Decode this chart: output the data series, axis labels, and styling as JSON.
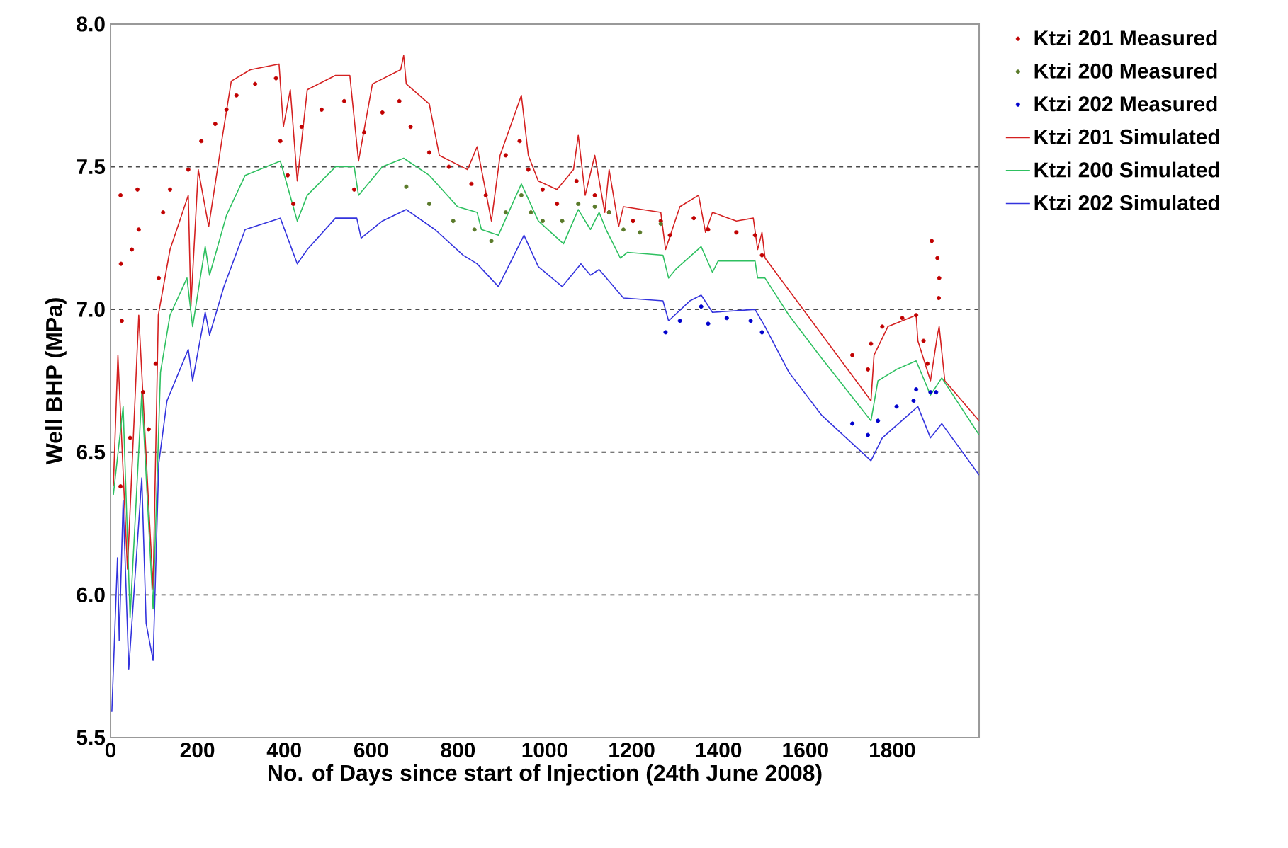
{
  "chart_data": {
    "type": "line",
    "xlabel": "No. of Days since start of Injection (24th June 2008)",
    "ylabel": "Well BHP (MPa)",
    "xlim": [
      0,
      2000
    ],
    "ylim": [
      5.5,
      8.0
    ],
    "xticks": [
      0,
      200,
      400,
      600,
      800,
      1000,
      1200,
      1400,
      1600,
      1800
    ],
    "yticks": [
      {
        "value": 5.5,
        "label": "5.5"
      },
      {
        "value": 6,
        "label": "6.0"
      },
      {
        "value": 6.5,
        "label": "6.5"
      },
      {
        "value": 7,
        "label": "7.0"
      },
      {
        "value": 7.5,
        "label": "7.5"
      },
      {
        "value": 8,
        "label": "8.0"
      }
    ],
    "grid": "y",
    "legend": "top right",
    "series": [
      {
        "name": "Ktzi 201 Measured",
        "type": "scatter",
        "marker": "circle",
        "color": "#c00000",
        "x": [
          23,
          24,
          26,
          23,
          45,
          49,
          62,
          65,
          75,
          88,
          104,
          111,
          121,
          137,
          179,
          209,
          241,
          267,
          290,
          333,
          381,
          391,
          408,
          421,
          440,
          486,
          538,
          561,
          584,
          626,
          665,
          691,
          734,
          779,
          831,
          864,
          910,
          942,
          962,
          995,
          1028,
          1073,
          1115,
          1148,
          1203,
          1267,
          1288,
          1343,
          1376,
          1441,
          1484,
          1500,
          1708,
          1744,
          1751,
          1777,
          1823,
          1855,
          1872,
          1881,
          1891,
          1904,
          1908,
          1907
        ],
        "values": [
          7.4,
          7.16,
          6.96,
          6.38,
          6.55,
          7.21,
          7.42,
          7.28,
          6.71,
          6.58,
          6.81,
          7.11,
          7.34,
          7.42,
          7.49,
          7.59,
          7.65,
          7.7,
          7.75,
          7.79,
          7.81,
          7.59,
          7.47,
          7.37,
          7.64,
          7.7,
          7.73,
          7.42,
          7.62,
          7.69,
          7.73,
          7.64,
          7.55,
          7.5,
          7.44,
          7.4,
          7.54,
          7.59,
          7.49,
          7.42,
          7.37,
          7.45,
          7.4,
          7.34,
          7.31,
          7.31,
          7.26,
          7.32,
          7.28,
          7.27,
          7.26,
          7.19,
          6.84,
          6.79,
          6.88,
          6.94,
          6.97,
          6.98,
          6.89,
          6.81,
          7.24,
          7.18,
          7.11,
          7.04
        ]
      },
      {
        "name": "Ktzi 200 Measured",
        "type": "scatter",
        "marker": "circle",
        "color": "#5a7a2a",
        "x": [
          681,
          734,
          789,
          838,
          877,
          910,
          946,
          968,
          995,
          1040,
          1077,
          1115,
          1148,
          1181,
          1219,
          1267
        ],
        "values": [
          7.43,
          7.37,
          7.31,
          7.28,
          7.24,
          7.34,
          7.4,
          7.34,
          7.31,
          7.31,
          7.37,
          7.36,
          7.34,
          7.28,
          7.27,
          7.3
        ]
      },
      {
        "name": "Ktzi 202 Measured",
        "type": "scatter",
        "marker": "circle",
        "color": "#0000cc",
        "x": [
          1278,
          1311,
          1360,
          1376,
          1419,
          1474,
          1500,
          1708,
          1744,
          1767,
          1810,
          1849,
          1855,
          1888,
          1901
        ],
        "values": [
          6.92,
          6.96,
          7.01,
          6.95,
          6.97,
          6.96,
          6.92,
          6.6,
          6.56,
          6.61,
          6.66,
          6.68,
          6.72,
          6.71,
          6.71
        ]
      },
      {
        "name": "Ktzi 201 Simulated",
        "marker": "none",
        "color": "#d42020",
        "x": [
          6.5,
          17,
          39,
          65,
          98,
          110,
          137,
          179,
          185,
          202,
          226,
          257,
          278,
          322,
          388,
          398,
          414,
          430,
          453,
          518,
          551,
          571,
          603,
          668,
          675,
          681,
          734,
          757,
          822,
          844,
          877,
          897,
          946,
          962,
          985,
          1028,
          1066,
          1077,
          1093,
          1115,
          1138,
          1148,
          1170,
          1181,
          1267,
          1278,
          1311,
          1354,
          1370,
          1386,
          1441,
          1480,
          1490,
          1500,
          1507,
          1751,
          1758,
          1790,
          1855,
          1859,
          1888,
          1904,
          1908,
          1921,
          2000
        ],
        "values": [
          6.38,
          6.84,
          6.09,
          6.98,
          6.02,
          6.98,
          7.21,
          7.4,
          7.01,
          7.49,
          7.29,
          7.6,
          7.8,
          7.84,
          7.86,
          7.64,
          7.77,
          7.45,
          7.77,
          7.82,
          7.82,
          7.52,
          7.79,
          7.84,
          7.89,
          7.79,
          7.72,
          7.54,
          7.49,
          7.57,
          7.31,
          7.54,
          7.75,
          7.54,
          7.45,
          7.42,
          7.49,
          7.61,
          7.4,
          7.54,
          7.34,
          7.49,
          7.29,
          7.36,
          7.34,
          7.21,
          7.36,
          7.4,
          7.27,
          7.34,
          7.31,
          7.32,
          7.21,
          7.27,
          7.18,
          6.68,
          6.84,
          6.94,
          6.98,
          6.89,
          6.75,
          6.91,
          6.94,
          6.75,
          6.61
        ]
      },
      {
        "name": "Ktzi 200 Simulated",
        "marker": "none",
        "color": "#2ec060",
        "x": [
          6.5,
          29,
          45,
          72,
          98,
          115,
          137,
          176,
          189,
          218,
          228,
          267,
          310,
          391,
          430,
          453,
          518,
          561,
          571,
          626,
          675,
          734,
          799,
          844,
          854,
          893,
          946,
          985,
          1043,
          1077,
          1105,
          1125,
          1141,
          1174,
          1190,
          1272,
          1285,
          1301,
          1360,
          1386,
          1399,
          1484,
          1490,
          1507,
          1562,
          1637,
          1751,
          1767,
          1810,
          1855,
          1888,
          1914,
          2000
        ],
        "values": [
          6.35,
          6.66,
          5.92,
          6.71,
          5.95,
          6.78,
          6.98,
          7.11,
          6.94,
          7.22,
          7.12,
          7.33,
          7.47,
          7.52,
          7.31,
          7.4,
          7.5,
          7.5,
          7.4,
          7.5,
          7.53,
          7.47,
          7.36,
          7.34,
          7.28,
          7.26,
          7.44,
          7.31,
          7.23,
          7.35,
          7.28,
          7.34,
          7.28,
          7.18,
          7.2,
          7.19,
          7.11,
          7.14,
          7.22,
          7.13,
          7.17,
          7.17,
          7.11,
          7.11,
          6.98,
          6.83,
          6.61,
          6.75,
          6.79,
          6.82,
          6.7,
          6.76,
          6.56
        ]
      },
      {
        "name": "Ktzi 202 Simulated",
        "marker": "none",
        "color": "#3333dd",
        "x": [
          3,
          16,
          20,
          29,
          42,
          72,
          82,
          98,
          111,
          130,
          179,
          189,
          218,
          228,
          261,
          310,
          391,
          430,
          453,
          518,
          567,
          577,
          626,
          681,
          747,
          812,
          844,
          893,
          952,
          985,
          1040,
          1083,
          1105,
          1125,
          1181,
          1272,
          1285,
          1334,
          1360,
          1386,
          1484,
          1507,
          1562,
          1637,
          1751,
          1777,
          1859,
          1888,
          1914,
          2000
        ],
        "values": [
          5.59,
          6.13,
          5.84,
          6.33,
          5.74,
          6.41,
          5.9,
          5.77,
          6.46,
          6.68,
          6.86,
          6.75,
          6.99,
          6.91,
          7.08,
          7.28,
          7.32,
          7.16,
          7.21,
          7.32,
          7.32,
          7.25,
          7.31,
          7.35,
          7.28,
          7.19,
          7.16,
          7.08,
          7.26,
          7.15,
          7.08,
          7.16,
          7.12,
          7.14,
          7.04,
          7.03,
          6.96,
          7.03,
          7.05,
          6.99,
          7.0,
          6.94,
          6.78,
          6.63,
          6.47,
          6.55,
          6.66,
          6.55,
          6.6,
          6.42
        ]
      }
    ]
  }
}
